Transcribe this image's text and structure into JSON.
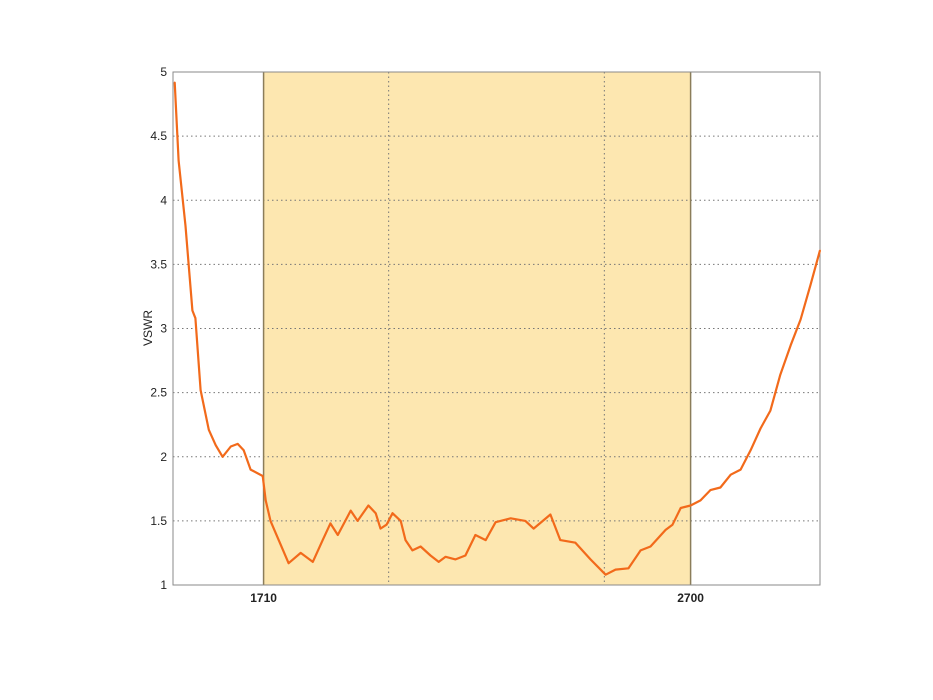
{
  "chart_data": {
    "type": "line",
    "title": "",
    "xlabel": "",
    "ylabel": "VSWR",
    "xlim": [
      1500,
      3000
    ],
    "ylim": [
      1,
      5
    ],
    "yticks": [
      "1",
      "1.5",
      "2",
      "2.5",
      "3",
      "3.5",
      "4",
      "4.5",
      "5"
    ],
    "xticks": [
      "1710",
      "2700"
    ],
    "x_gridlines": [
      2000,
      2500
    ],
    "grid": true,
    "highlight_band": {
      "from": 1710,
      "to": 2700,
      "color": "#fde7b0"
    },
    "line_color": "#f26a1b",
    "series": [
      {
        "x": [
          1504,
          1513,
          1529,
          1545,
          1552,
          1564,
          1583,
          1599,
          1615,
          1634,
          1650,
          1664,
          1680,
          1708,
          1715,
          1726,
          1745,
          1768,
          1796,
          1824,
          1847,
          1865,
          1882,
          1912,
          1928,
          1953,
          1970,
          1981,
          1995,
          2009,
          2028,
          2039,
          2055,
          2074,
          2097,
          2116,
          2132,
          2155,
          2178,
          2201,
          2225,
          2248,
          2283,
          2317,
          2336,
          2375,
          2398,
          2433,
          2468,
          2503,
          2526,
          2556,
          2584,
          2607,
          2642,
          2658,
          2677,
          2700,
          2723,
          2746,
          2769,
          2793,
          2816,
          2839,
          2862,
          2885,
          2908,
          2932,
          2955,
          2978,
          3000
        ],
        "y": [
          4.92,
          4.31,
          3.8,
          3.14,
          3.08,
          2.52,
          2.21,
          2.09,
          2.0,
          2.08,
          2.1,
          2.05,
          1.9,
          1.85,
          1.66,
          1.5,
          1.35,
          1.17,
          1.25,
          1.18,
          1.35,
          1.48,
          1.39,
          1.58,
          1.5,
          1.62,
          1.56,
          1.44,
          1.47,
          1.56,
          1.5,
          1.35,
          1.27,
          1.3,
          1.23,
          1.18,
          1.22,
          1.2,
          1.23,
          1.39,
          1.35,
          1.49,
          1.52,
          1.5,
          1.44,
          1.55,
          1.35,
          1.33,
          1.2,
          1.08,
          1.12,
          1.13,
          1.27,
          1.3,
          1.43,
          1.47,
          1.6,
          1.62,
          1.66,
          1.74,
          1.76,
          1.86,
          1.9,
          2.05,
          2.22,
          2.36,
          2.64,
          2.87,
          3.07,
          3.34,
          3.61
        ]
      }
    ]
  }
}
